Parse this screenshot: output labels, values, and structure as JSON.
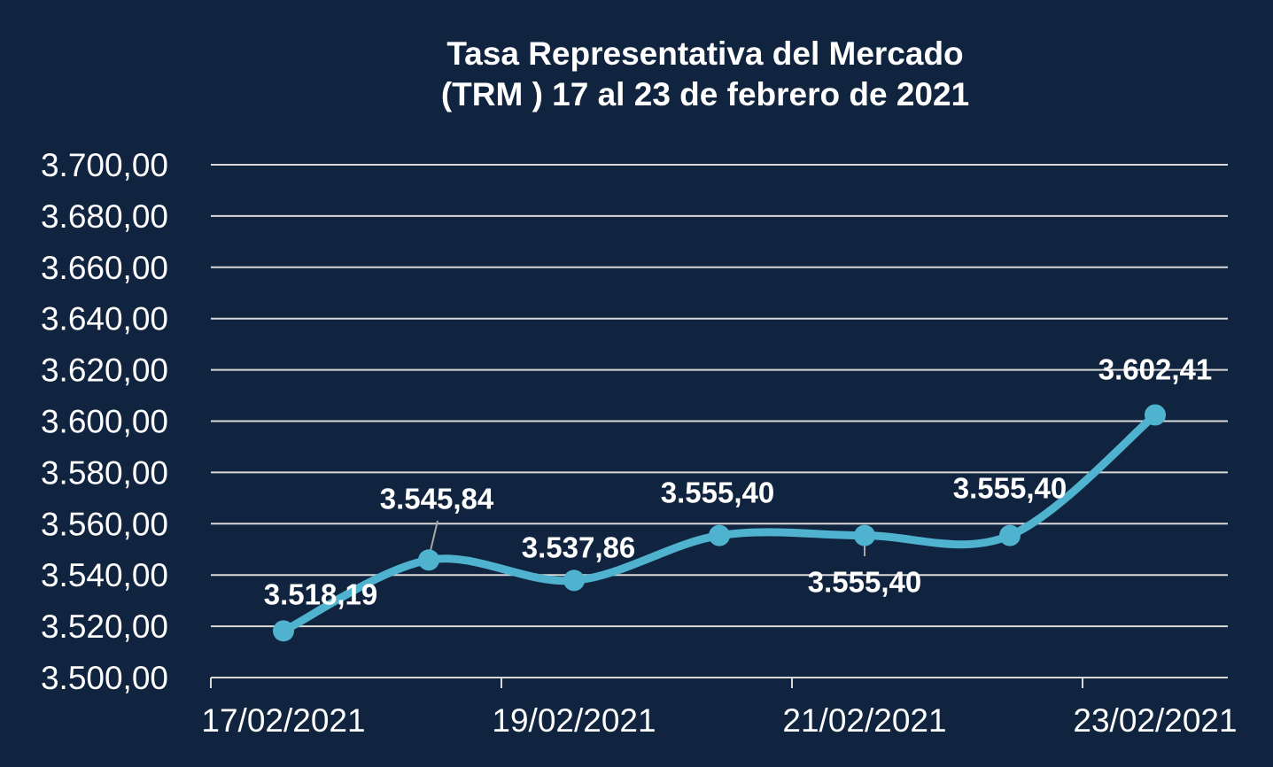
{
  "chart_data": {
    "type": "line",
    "title_line1": "Tasa Representativa del Mercado",
    "title_line2": "(TRM )  17 al 23 de febrero de 2021",
    "x": [
      "17/02/2021",
      "18/02/2021",
      "19/02/2021",
      "20/02/2021",
      "21/02/2021",
      "22/02/2021",
      "23/02/2021"
    ],
    "x_tick_labels": [
      "17/02/2021",
      "19/02/2021",
      "21/02/2021",
      "23/02/2021"
    ],
    "values": [
      3518.19,
      3545.84,
      3537.86,
      3555.4,
      3555.4,
      3555.4,
      3602.41
    ],
    "data_labels": [
      "3.518,19",
      "3.545,84",
      "3.537,86",
      "3.555,40",
      "3.555,40",
      "3.555,40",
      "3.602,41"
    ],
    "y_tick_labels": [
      "3.500,00",
      "3.520,00",
      "3.540,00",
      "3.560,00",
      "3.580,00",
      "3.600,00",
      "3.620,00",
      "3.640,00",
      "3.660,00",
      "3.680,00",
      "3.700,00"
    ],
    "ylim": [
      3500,
      3700
    ],
    "ystep": 20,
    "grid": true,
    "legend": "none",
    "line_color": "#4fb3cf",
    "background_color": "#11243f",
    "grid_color": "#d9d9d9"
  }
}
